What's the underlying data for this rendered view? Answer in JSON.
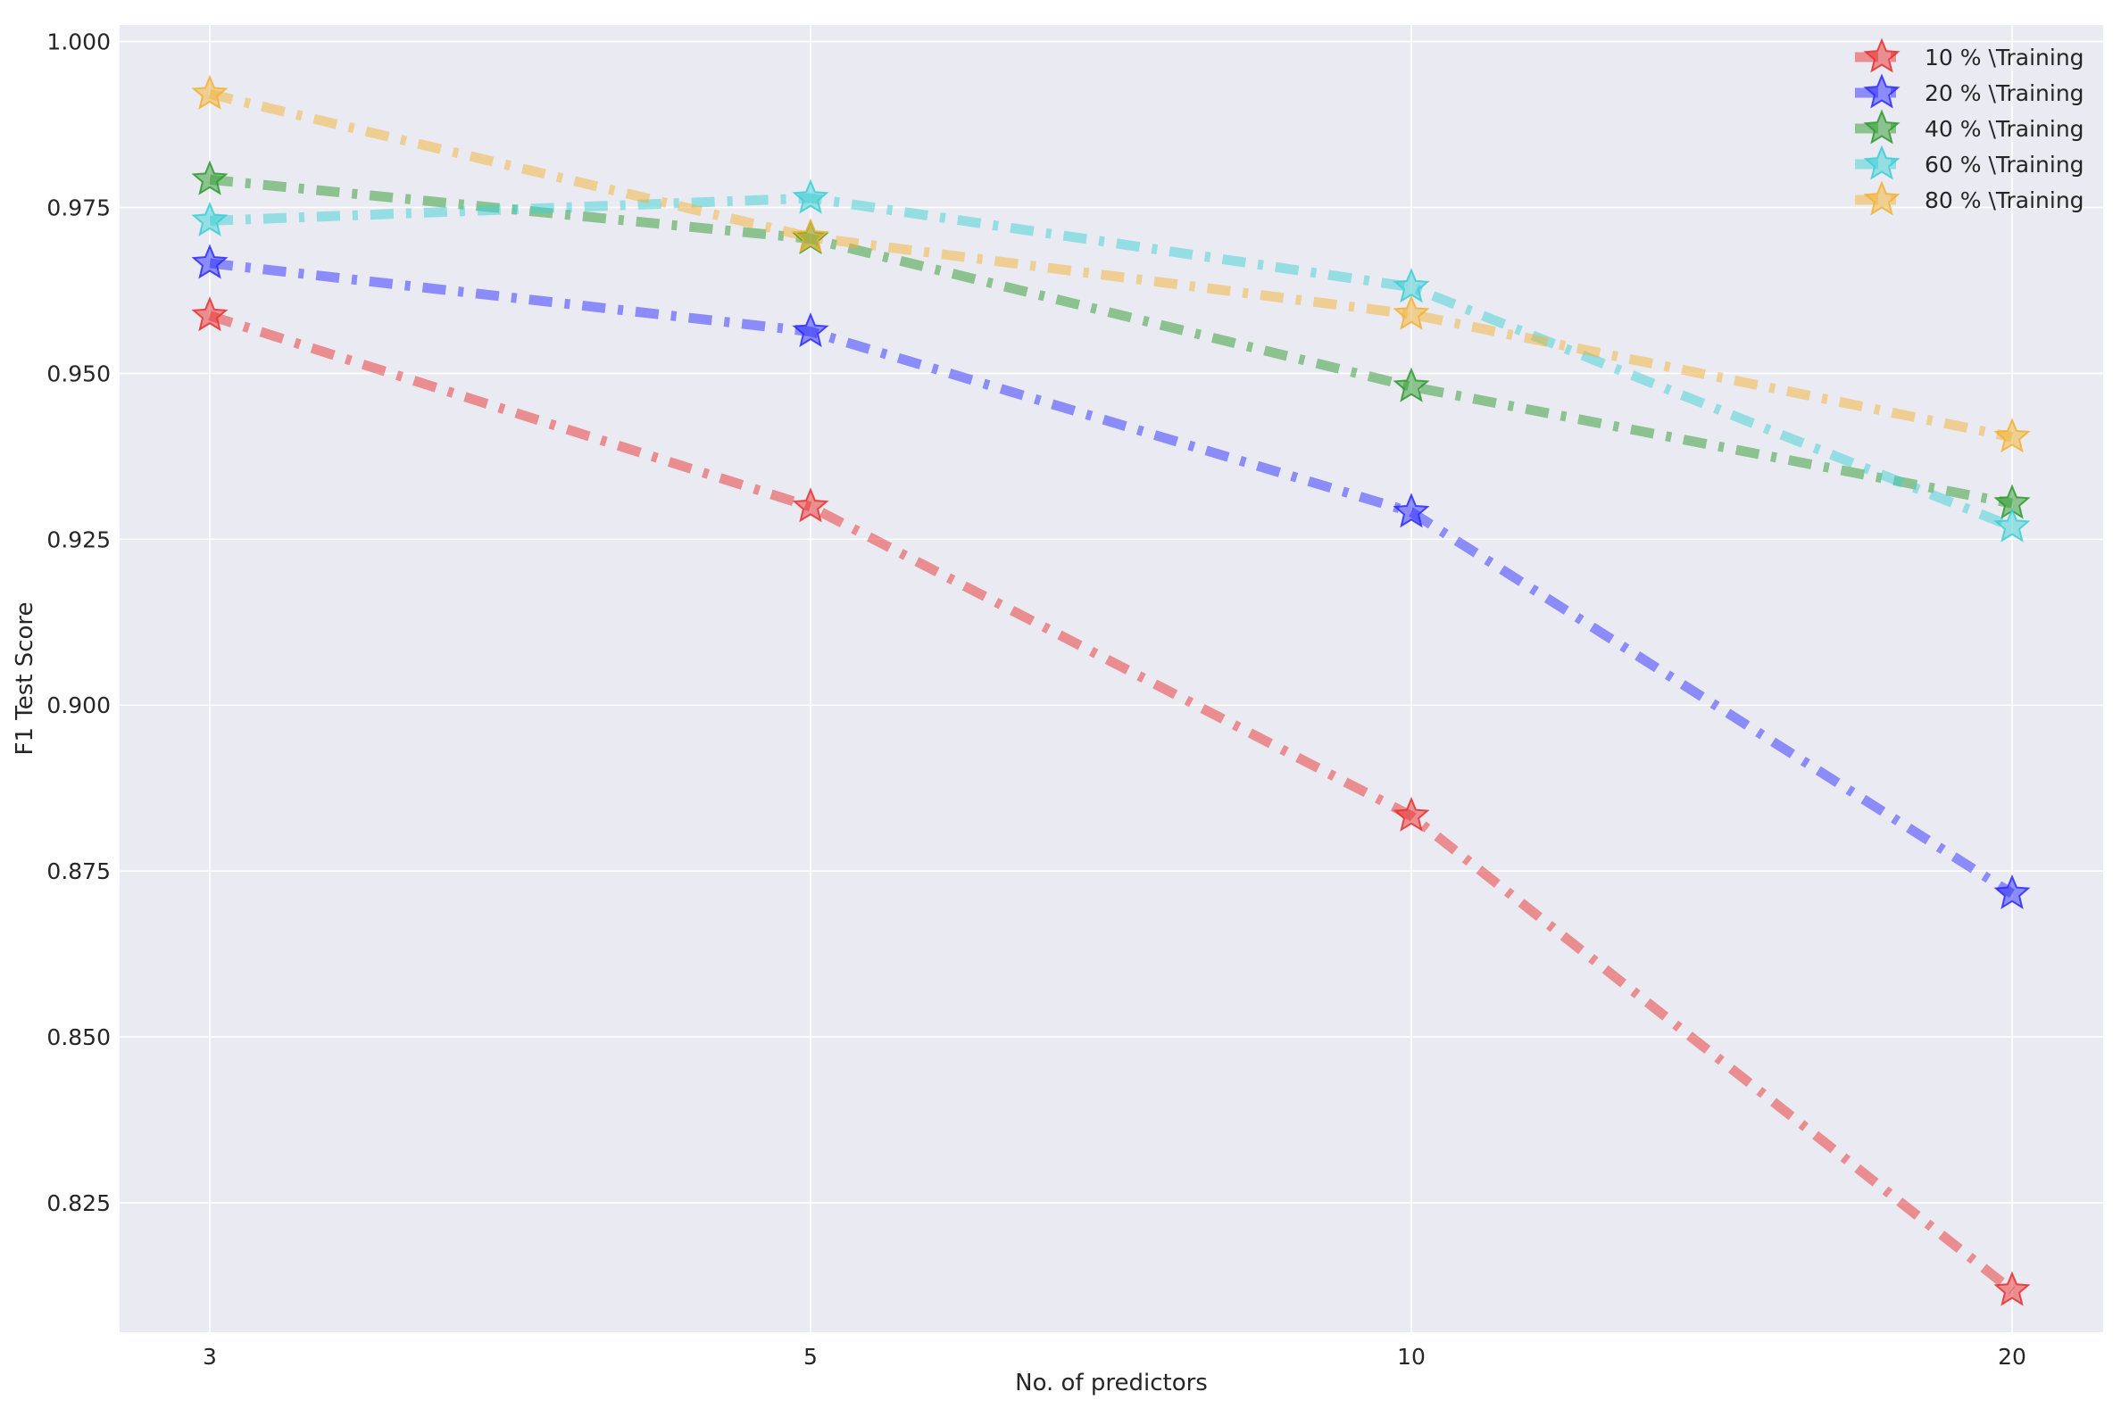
{
  "chart_data": {
    "type": "line",
    "title": "",
    "xlabel": "No. of predictors",
    "ylabel": "F1 Test Score",
    "x": [
      3,
      5,
      10,
      20
    ],
    "x_tick_labels": [
      "3",
      "5",
      "10",
      "20"
    ],
    "x_scale": "categorical",
    "ylim": [
      0.8055,
      1.0025
    ],
    "y_ticks": [
      0.825,
      0.85,
      0.875,
      0.9,
      0.925,
      0.95,
      0.975,
      1.0
    ],
    "y_tick_labels": [
      "0.825",
      "0.850",
      "0.875",
      "0.900",
      "0.925",
      "0.950",
      "0.975",
      "1.000"
    ],
    "grid": true,
    "legend_position": "top-right",
    "line_style": "dash-dot",
    "marker": "star",
    "series": [
      {
        "name": "10 % \\Training",
        "color": "#e8302e",
        "values": [
          0.9587,
          0.9299,
          0.8833,
          0.8118
        ]
      },
      {
        "name": "20 % \\Training",
        "color": "#2b2bff",
        "values": [
          0.9666,
          0.9563,
          0.9291,
          0.8716
        ]
      },
      {
        "name": "40 % \\Training",
        "color": "#2e9a2e",
        "values": [
          0.9792,
          0.9703,
          0.948,
          0.9304
        ]
      },
      {
        "name": "60 % \\Training",
        "color": "#3ccfd4",
        "values": [
          0.973,
          0.9764,
          0.963,
          0.9269
        ]
      },
      {
        "name": "80 % \\Training",
        "color": "#f2b133",
        "values": [
          0.9921,
          0.9705,
          0.9589,
          0.9404
        ]
      }
    ]
  }
}
